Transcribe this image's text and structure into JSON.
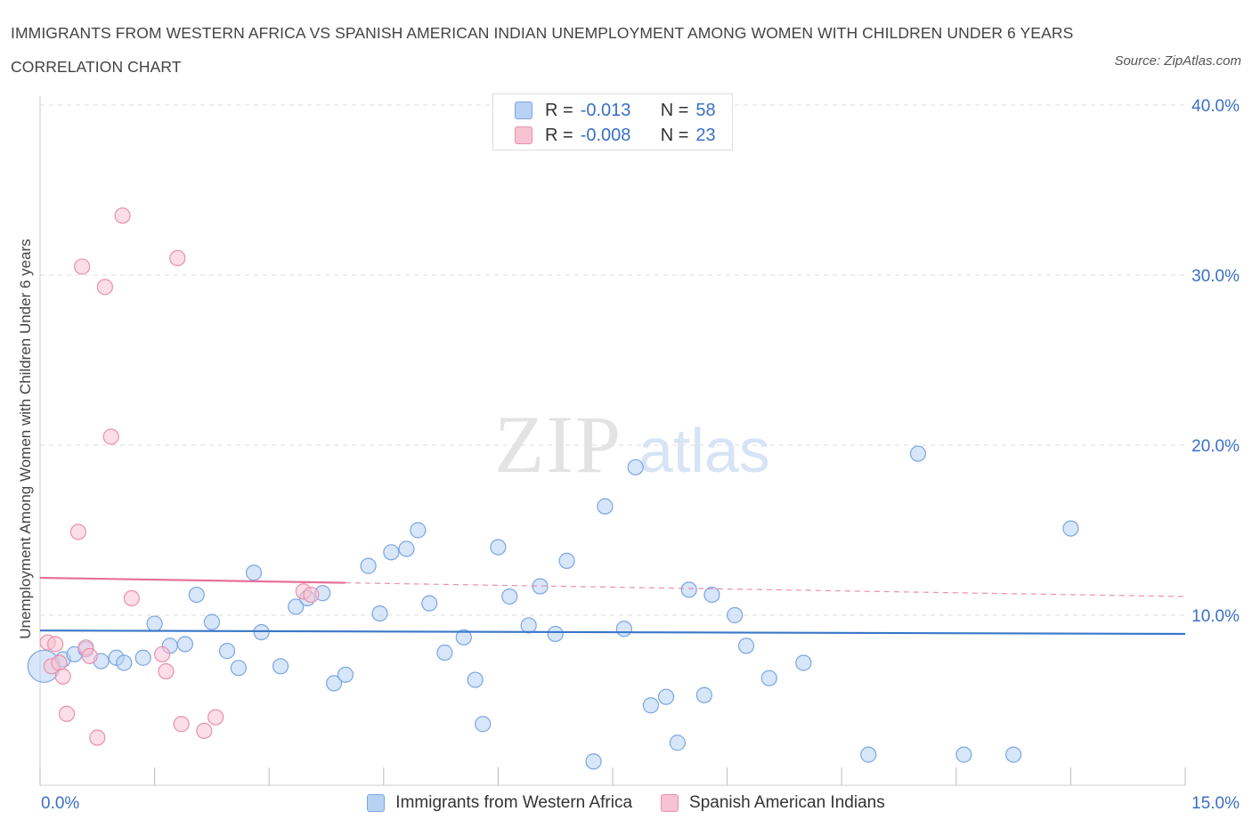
{
  "header": {
    "title": "IMMIGRANTS FROM WESTERN AFRICA VS SPANISH AMERICAN INDIAN UNEMPLOYMENT AMONG WOMEN WITH CHILDREN UNDER 6 YEARS CORRELATION CHART",
    "source": "Source: ZipAtlas.com"
  },
  "legend": {
    "r_label": "R =",
    "n_label": "N =",
    "series": [
      {
        "r": "-0.013",
        "n": "58"
      },
      {
        "r": "-0.008",
        "n": "23"
      }
    ]
  },
  "colors": {
    "blue_fill": "#b8d2f5",
    "blue_stroke": "#7aa6e0",
    "blue_line": "#3a77c9",
    "pink_fill": "#f7c3d3",
    "pink_stroke": "#ea90ad",
    "pink_line": "#e8709a",
    "axis_label": "#3a6fc4",
    "grid": "#dcdcdc"
  },
  "watermark": {
    "part1": "ZIP",
    "part2": "atlas"
  },
  "chart_data": {
    "type": "scatter",
    "xlabel": "",
    "ylabel": "Unemployment Among Women with Children Under 6 years",
    "xlim": [
      0,
      15
    ],
    "ylim": [
      0,
      40
    ],
    "x_tick_labels": [
      {
        "value": 0,
        "label": "0.0%"
      },
      {
        "value": 15,
        "label": "15.0%"
      }
    ],
    "y_ticks": [
      {
        "value": 10,
        "label": "10.0%"
      },
      {
        "value": 20,
        "label": "20.0%"
      },
      {
        "value": 30,
        "label": "30.0%"
      },
      {
        "value": 40,
        "label": "40.0%"
      }
    ],
    "x_minor_ticks": [
      0,
      1.5,
      3,
      4.5,
      6,
      7.5,
      9,
      10.5,
      12,
      13.5,
      15
    ],
    "grid": true,
    "legend_position": "top-center",
    "series": [
      {
        "name": "Immigrants from Western Africa",
        "color": "blue",
        "trend": {
          "x": [
            0,
            15
          ],
          "y": [
            9.1,
            8.9
          ],
          "dashed_from": null
        },
        "points": [
          {
            "x": 0.05,
            "y": 7.0,
            "big": true
          },
          {
            "x": 0.3,
            "y": 7.4
          },
          {
            "x": 0.45,
            "y": 7.7
          },
          {
            "x": 0.6,
            "y": 8.0
          },
          {
            "x": 0.8,
            "y": 7.3
          },
          {
            "x": 1.0,
            "y": 7.5
          },
          {
            "x": 1.1,
            "y": 7.2
          },
          {
            "x": 1.35,
            "y": 7.5
          },
          {
            "x": 1.5,
            "y": 9.5
          },
          {
            "x": 1.7,
            "y": 8.2
          },
          {
            "x": 1.9,
            "y": 8.3
          },
          {
            "x": 2.05,
            "y": 11.2
          },
          {
            "x": 2.25,
            "y": 9.6
          },
          {
            "x": 2.45,
            "y": 7.9
          },
          {
            "x": 2.6,
            "y": 6.9
          },
          {
            "x": 2.8,
            "y": 12.5
          },
          {
            "x": 2.9,
            "y": 9.0
          },
          {
            "x": 3.15,
            "y": 7.0
          },
          {
            "x": 3.35,
            "y": 10.5
          },
          {
            "x": 3.5,
            "y": 11.0
          },
          {
            "x": 3.7,
            "y": 11.3
          },
          {
            "x": 3.85,
            "y": 6.0
          },
          {
            "x": 4.0,
            "y": 6.5
          },
          {
            "x": 4.3,
            "y": 12.9
          },
          {
            "x": 4.45,
            "y": 10.1
          },
          {
            "x": 4.6,
            "y": 13.7
          },
          {
            "x": 4.8,
            "y": 13.9
          },
          {
            "x": 4.95,
            "y": 15.0
          },
          {
            "x": 5.1,
            "y": 10.7
          },
          {
            "x": 5.3,
            "y": 7.8
          },
          {
            "x": 5.55,
            "y": 8.7
          },
          {
            "x": 5.7,
            "y": 6.2
          },
          {
            "x": 5.8,
            "y": 3.6
          },
          {
            "x": 6.0,
            "y": 14.0
          },
          {
            "x": 6.15,
            "y": 11.1
          },
          {
            "x": 6.4,
            "y": 9.4
          },
          {
            "x": 6.55,
            "y": 11.7
          },
          {
            "x": 6.75,
            "y": 8.9
          },
          {
            "x": 6.9,
            "y": 13.2
          },
          {
            "x": 7.25,
            "y": 1.4
          },
          {
            "x": 7.4,
            "y": 16.4
          },
          {
            "x": 7.65,
            "y": 9.2
          },
          {
            "x": 7.8,
            "y": 18.7
          },
          {
            "x": 8.0,
            "y": 4.7
          },
          {
            "x": 8.2,
            "y": 5.2
          },
          {
            "x": 8.35,
            "y": 2.5
          },
          {
            "x": 8.5,
            "y": 11.5
          },
          {
            "x": 8.7,
            "y": 5.3
          },
          {
            "x": 8.8,
            "y": 11.2
          },
          {
            "x": 9.1,
            "y": 10.0
          },
          {
            "x": 9.25,
            "y": 8.2
          },
          {
            "x": 9.55,
            "y": 6.3
          },
          {
            "x": 10.0,
            "y": 7.2
          },
          {
            "x": 10.85,
            "y": 1.8
          },
          {
            "x": 11.5,
            "y": 19.5
          },
          {
            "x": 12.1,
            "y": 1.8
          },
          {
            "x": 12.75,
            "y": 1.8
          },
          {
            "x": 13.5,
            "y": 15.1
          }
        ]
      },
      {
        "name": "Spanish American Indians",
        "color": "pink",
        "trend": {
          "x": [
            0,
            15
          ],
          "y": [
            12.2,
            11.1
          ],
          "dashed_from": 4
        },
        "points": [
          {
            "x": 0.1,
            "y": 8.4
          },
          {
            "x": 0.15,
            "y": 7.0
          },
          {
            "x": 0.2,
            "y": 8.3
          },
          {
            "x": 0.25,
            "y": 7.2
          },
          {
            "x": 0.3,
            "y": 6.4
          },
          {
            "x": 0.35,
            "y": 4.2
          },
          {
            "x": 0.5,
            "y": 14.9
          },
          {
            "x": 0.55,
            "y": 30.5
          },
          {
            "x": 0.6,
            "y": 8.1
          },
          {
            "x": 0.65,
            "y": 7.6
          },
          {
            "x": 0.75,
            "y": 2.8
          },
          {
            "x": 0.85,
            "y": 29.3
          },
          {
            "x": 0.93,
            "y": 20.5
          },
          {
            "x": 1.08,
            "y": 33.5
          },
          {
            "x": 1.2,
            "y": 11.0
          },
          {
            "x": 1.6,
            "y": 7.7
          },
          {
            "x": 1.65,
            "y": 6.7
          },
          {
            "x": 1.8,
            "y": 31.0
          },
          {
            "x": 1.85,
            "y": 3.6
          },
          {
            "x": 2.15,
            "y": 3.2
          },
          {
            "x": 2.3,
            "y": 4.0
          },
          {
            "x": 3.45,
            "y": 11.4
          },
          {
            "x": 3.55,
            "y": 11.2
          }
        ]
      }
    ]
  }
}
